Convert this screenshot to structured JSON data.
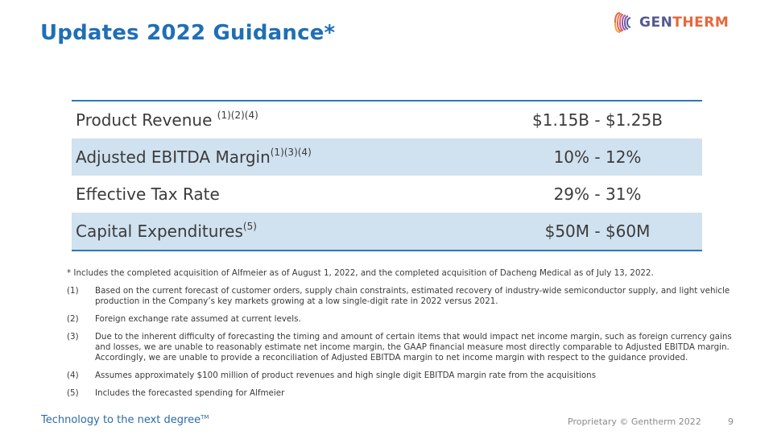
{
  "title": "Updates 2022 Guidance*",
  "logo": {
    "gen": "GEN",
    "therm": "THERM"
  },
  "colors": {
    "title": "#1f6fb5",
    "table_rule": "#2f77b6",
    "row_shade": "#d0e1ef",
    "logo_orange": "#e8673a",
    "logo_purple": "#555a8c"
  },
  "guidance": [
    {
      "label": "Product Revenue ",
      "sup": "(1)(2)(4)",
      "value": "$1.15B - $1.25B"
    },
    {
      "label": "Adjusted EBITDA Margin",
      "sup": "(1)(3)(4)",
      "value": "10% - 12%"
    },
    {
      "label": "Effective Tax Rate",
      "sup": "",
      "value": "29% - 31%"
    },
    {
      "label": "Capital Expenditures",
      "sup": "(5)",
      "value": "$50M - $60M"
    }
  ],
  "star_note": "* Includes the completed acquisition of Alfmeier as of August 1, 2022, and the completed acquisition of Dacheng Medical as of July 13, 2022.",
  "footnotes": [
    {
      "num": "(1)",
      "text": "Based on the current forecast of customer orders, supply chain constraints, estimated recovery of industry-wide semiconductor supply, and light vehicle production in the Company’s key markets growing at a low single-digit rate in 2022 versus 2021."
    },
    {
      "num": "(2)",
      "text": "Foreign exchange rate assumed at current levels."
    },
    {
      "num": "(3)",
      "text": "Due to the inherent difficulty of forecasting the timing and amount of certain items that would impact net income margin, such as foreign currency gains and losses, we are unable to reasonably estimate net income margin, the GAAP financial measure most directly comparable to Adjusted EBITDA margin. Accordingly, we are unable to provide a reconciliation of Adjusted EBITDA margin to net income margin with respect to the guidance provided."
    },
    {
      "num": "(4)",
      "text": "Assumes approximately $100 million of product revenues and high single digit EBITDA margin rate from the acquisitions"
    },
    {
      "num": "(5)",
      "text": "Includes the forecasted spending for Alfmeier"
    }
  ],
  "tagline": "Technology to the next degree",
  "tagline_tm": "TM",
  "footer": "Proprietary © Gentherm 2022",
  "page_number": "9"
}
